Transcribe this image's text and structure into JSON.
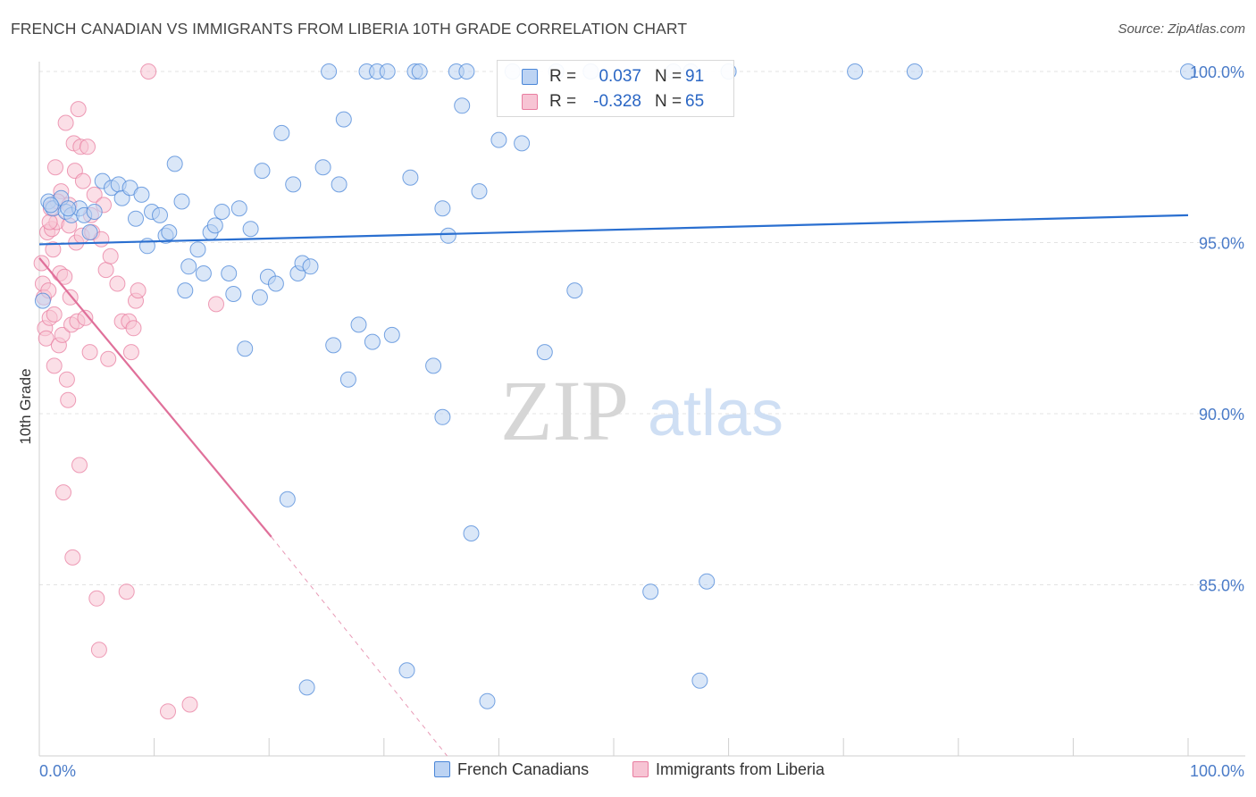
{
  "title": "FRENCH CANADIAN VS IMMIGRANTS FROM LIBERIA 10TH GRADE CORRELATION CHART",
  "source": "Source: ZipAtlas.com",
  "watermark": {
    "zip": "ZIP",
    "atlas": "atlas"
  },
  "colors": {
    "blue": "#4a86d8",
    "pink": "#e87da0",
    "blue_fill": "#bcd3f3",
    "pink_fill": "#f7c4d4"
  },
  "legend": {
    "series1": {
      "r_label": "R =",
      "r_value": "0.037",
      "n_label": "N =",
      "n_value": "91"
    },
    "series2": {
      "r_label": "R =",
      "r_value": "-0.328",
      "n_label": "N =",
      "n_value": "65"
    }
  },
  "chart_data": {
    "type": "scatter",
    "title": "FRENCH CANADIAN VS IMMIGRANTS FROM LIBERIA 10TH GRADE CORRELATION CHART",
    "xlabel": "",
    "ylabel": "10th Grade",
    "xlim": [
      0,
      100
    ],
    "ylim": [
      80.0,
      100.6
    ],
    "x_tick_labels": [
      "0.0%",
      "100.0%"
    ],
    "y_ticks": [
      85,
      90,
      95,
      100
    ],
    "y_tick_labels": [
      "85.0%",
      "90.0%",
      "95.0%",
      "100.0%"
    ],
    "grid": true,
    "series": [
      {
        "name": "French Canadians",
        "color": "#4a86d8",
        "trend": {
          "x": [
            0,
            100
          ],
          "y": [
            94.95,
            95.8
          ]
        },
        "points": [
          [
            0.8,
            96.2
          ],
          [
            1.2,
            96.0
          ],
          [
            1.9,
            96.3
          ],
          [
            2.3,
            95.9
          ],
          [
            2.8,
            95.8
          ],
          [
            3.5,
            96.0
          ],
          [
            3.9,
            95.8
          ],
          [
            4.4,
            95.3
          ],
          [
            4.8,
            95.9
          ],
          [
            5.5,
            96.8
          ],
          [
            6.3,
            96.6
          ],
          [
            6.9,
            96.7
          ],
          [
            7.2,
            96.3
          ],
          [
            7.9,
            96.6
          ],
          [
            8.4,
            95.7
          ],
          [
            8.9,
            96.4
          ],
          [
            9.4,
            94.9
          ],
          [
            9.8,
            95.9
          ],
          [
            10.5,
            95.8
          ],
          [
            11.0,
            95.2
          ],
          [
            11.3,
            95.3
          ],
          [
            11.8,
            97.3
          ],
          [
            12.4,
            96.2
          ],
          [
            12.7,
            93.6
          ],
          [
            13.0,
            94.3
          ],
          [
            13.8,
            94.8
          ],
          [
            14.3,
            94.1
          ],
          [
            14.9,
            95.3
          ],
          [
            15.3,
            95.5
          ],
          [
            15.9,
            95.9
          ],
          [
            16.5,
            94.1
          ],
          [
            16.9,
            93.5
          ],
          [
            17.4,
            96.0
          ],
          [
            17.9,
            91.9
          ],
          [
            18.4,
            95.4
          ],
          [
            19.2,
            93.4
          ],
          [
            19.4,
            97.1
          ],
          [
            19.9,
            94.0
          ],
          [
            20.6,
            93.8
          ],
          [
            21.1,
            98.2
          ],
          [
            21.6,
            87.5
          ],
          [
            22.1,
            96.7
          ],
          [
            22.5,
            94.1
          ],
          [
            22.9,
            94.4
          ],
          [
            23.3,
            82.0
          ],
          [
            23.6,
            94.3
          ],
          [
            24.7,
            97.2
          ],
          [
            25.2,
            100.0
          ],
          [
            25.6,
            92.0
          ],
          [
            26.1,
            96.7
          ],
          [
            26.5,
            98.6
          ],
          [
            26.9,
            91.0
          ],
          [
            27.8,
            92.6
          ],
          [
            28.5,
            100.0
          ],
          [
            29.0,
            92.1
          ],
          [
            29.4,
            100.0
          ],
          [
            30.3,
            100.0
          ],
          [
            30.7,
            92.3
          ],
          [
            32.0,
            82.5
          ],
          [
            32.3,
            96.9
          ],
          [
            32.7,
            100.0
          ],
          [
            33.1,
            100.0
          ],
          [
            34.3,
            91.4
          ],
          [
            35.1,
            96.0
          ],
          [
            35.1,
            89.9
          ],
          [
            35.6,
            95.2
          ],
          [
            36.3,
            100.0
          ],
          [
            36.8,
            99.0
          ],
          [
            37.2,
            100.0
          ],
          [
            37.6,
            86.5
          ],
          [
            38.3,
            96.5
          ],
          [
            39.0,
            81.6
          ],
          [
            40.0,
            98.0
          ],
          [
            41.2,
            100.0
          ],
          [
            42.0,
            97.9
          ],
          [
            44.0,
            91.8
          ],
          [
            45.0,
            100.0
          ],
          [
            46.6,
            93.6
          ],
          [
            48.0,
            100.0
          ],
          [
            53.2,
            84.8
          ],
          [
            55.2,
            100.0
          ],
          [
            56.7,
            100.0
          ],
          [
            57.5,
            82.2
          ],
          [
            58.1,
            85.1
          ],
          [
            60.0,
            100.0
          ],
          [
            71.0,
            100.0
          ],
          [
            76.2,
            100.0
          ],
          [
            100.0,
            100.0
          ],
          [
            0.3,
            93.3
          ],
          [
            1.0,
            96.1
          ],
          [
            2.5,
            96.0
          ]
        ]
      },
      {
        "name": "Immigrants from Liberia",
        "color": "#e87da0",
        "trend": {
          "x": [
            0,
            20.2
          ],
          "y": [
            94.55,
            86.4
          ]
        },
        "trend_extension": {
          "x": [
            20.2,
            35.5
          ],
          "y": [
            86.4,
            80.0
          ]
        },
        "points": [
          [
            0.2,
            94.4
          ],
          [
            0.3,
            93.8
          ],
          [
            0.4,
            93.4
          ],
          [
            0.5,
            92.5
          ],
          [
            0.6,
            92.2
          ],
          [
            0.7,
            95.3
          ],
          [
            0.8,
            93.6
          ],
          [
            0.9,
            92.8
          ],
          [
            1.0,
            96.0
          ],
          [
            1.1,
            95.4
          ],
          [
            1.2,
            94.8
          ],
          [
            1.3,
            91.4
          ],
          [
            1.4,
            97.2
          ],
          [
            1.5,
            95.6
          ],
          [
            1.7,
            92.0
          ],
          [
            1.8,
            94.1
          ],
          [
            1.9,
            96.5
          ],
          [
            2.0,
            92.3
          ],
          [
            2.1,
            87.7
          ],
          [
            2.2,
            94.0
          ],
          [
            2.3,
            98.5
          ],
          [
            2.4,
            91.0
          ],
          [
            2.5,
            90.4
          ],
          [
            2.6,
            95.5
          ],
          [
            2.7,
            93.4
          ],
          [
            2.8,
            92.6
          ],
          [
            2.9,
            85.8
          ],
          [
            3.0,
            97.9
          ],
          [
            3.1,
            97.1
          ],
          [
            3.2,
            95.0
          ],
          [
            3.3,
            92.7
          ],
          [
            3.4,
            98.9
          ],
          [
            3.5,
            88.5
          ],
          [
            3.6,
            97.8
          ],
          [
            3.7,
            95.2
          ],
          [
            3.8,
            96.8
          ],
          [
            4.0,
            92.8
          ],
          [
            4.2,
            97.8
          ],
          [
            4.4,
            91.8
          ],
          [
            4.6,
            95.3
          ],
          [
            4.8,
            96.4
          ],
          [
            5.0,
            84.6
          ],
          [
            5.2,
            83.1
          ],
          [
            5.4,
            95.1
          ],
          [
            5.6,
            96.1
          ],
          [
            5.8,
            94.2
          ],
          [
            6.0,
            91.6
          ],
          [
            6.2,
            94.6
          ],
          [
            6.8,
            93.8
          ],
          [
            7.2,
            92.7
          ],
          [
            7.6,
            84.8
          ],
          [
            7.8,
            92.7
          ],
          [
            8.0,
            91.8
          ],
          [
            8.2,
            92.5
          ],
          [
            8.4,
            93.3
          ],
          [
            8.6,
            93.6
          ],
          [
            9.5,
            100.0
          ],
          [
            11.2,
            81.3
          ],
          [
            13.1,
            81.5
          ],
          [
            15.4,
            93.2
          ],
          [
            1.6,
            96.2
          ],
          [
            2.6,
            96.1
          ],
          [
            0.9,
            95.6
          ],
          [
            1.3,
            92.9
          ],
          [
            4.5,
            95.8
          ]
        ]
      }
    ]
  }
}
